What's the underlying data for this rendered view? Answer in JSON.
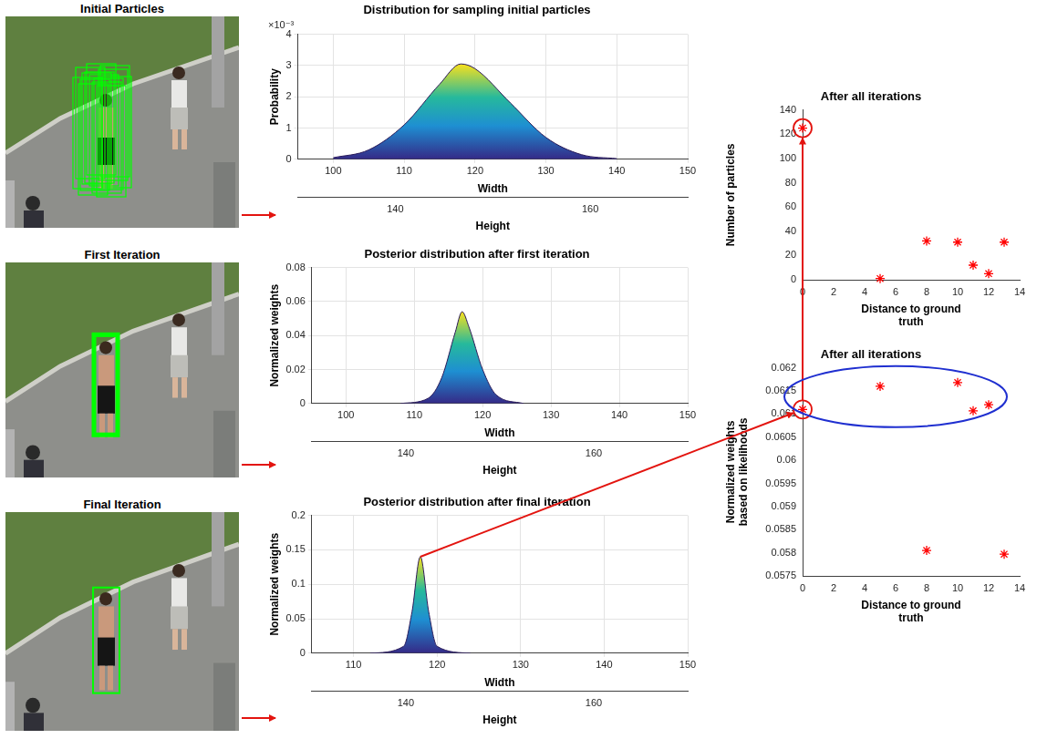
{
  "images": [
    {
      "title": "Initial Particles"
    },
    {
      "title": "First Iteration"
    },
    {
      "title": "Final Iteration"
    }
  ],
  "chart_data": [
    {
      "type": "surface",
      "title": "Distribution for sampling initial particles",
      "xlabel": "Width",
      "ylabel": "Probability",
      "x2label": "Height",
      "annotation": "×10⁻³",
      "x": [
        100,
        105,
        110,
        115,
        118,
        120,
        125,
        130,
        135,
        140
      ],
      "values": [
        0.05,
        0.3,
        1.1,
        2.4,
        3.05,
        2.9,
        1.8,
        0.7,
        0.15,
        0.02
      ],
      "xlim": [
        95,
        150
      ],
      "xticks": [
        100,
        110,
        120,
        130,
        140,
        150
      ],
      "ylim": [
        0,
        4
      ],
      "yticks": [
        0,
        1,
        2,
        3,
        4
      ],
      "x2lim": [
        130,
        170
      ],
      "x2ticks": [
        140,
        160
      ],
      "grid": true
    },
    {
      "type": "surface",
      "title": "Posterior distribution after first iteration",
      "xlabel": "Width",
      "ylabel": "Normalized weights",
      "x2label": "Height",
      "x": [
        108,
        112,
        114,
        116,
        117,
        118,
        120,
        122,
        126
      ],
      "values": [
        0,
        0.003,
        0.015,
        0.042,
        0.054,
        0.045,
        0.02,
        0.005,
        0
      ],
      "xlim": [
        95,
        150
      ],
      "xticks": [
        100,
        110,
        120,
        130,
        140,
        150
      ],
      "ylim": [
        0,
        0.08
      ],
      "yticks": [
        0,
        0.02,
        0.04,
        0.06,
        0.08
      ],
      "x2lim": [
        130,
        170
      ],
      "x2ticks": [
        140,
        160
      ],
      "grid": true
    },
    {
      "type": "surface",
      "title": "Posterior distribution after final iteration",
      "xlabel": "Width",
      "ylabel": "Normalized weights",
      "x2label": "Height",
      "x": [
        112,
        116,
        117,
        118,
        119,
        120,
        124
      ],
      "values": [
        0,
        0.01,
        0.06,
        0.14,
        0.06,
        0.01,
        0
      ],
      "xlim": [
        105,
        150
      ],
      "xticks": [
        110,
        120,
        130,
        140,
        150
      ],
      "ylim": [
        0,
        0.2
      ],
      "yticks": [
        0,
        0.05,
        0.1,
        0.15,
        0.2
      ],
      "x2lim": [
        130,
        170
      ],
      "x2ticks": [
        140,
        160
      ],
      "grid": true
    },
    {
      "type": "scatter",
      "title": "After all iterations",
      "xlabel": "Distance to ground truth",
      "ylabel": "Number of particles",
      "x": [
        0,
        5,
        8,
        10,
        11,
        12,
        13
      ],
      "values": [
        125,
        1,
        32,
        31,
        12,
        5,
        31
      ],
      "xlim": [
        0,
        14
      ],
      "xticks": [
        0,
        2,
        4,
        6,
        8,
        10,
        12,
        14
      ],
      "ylim": [
        0,
        140
      ],
      "yticks": [
        0,
        20,
        40,
        60,
        80,
        100,
        120,
        140
      ],
      "color": "#ff0000",
      "marker": "star",
      "grid": false
    },
    {
      "type": "scatter",
      "title": "After all iterations",
      "xlabel": "Distance to ground truth",
      "ylabel": "Normalized weights based on likelihoods",
      "x": [
        0,
        5,
        8,
        10,
        11,
        12,
        13
      ],
      "values": [
        0.0611,
        0.0616,
        0.05805,
        0.06168,
        0.06107,
        0.0612,
        0.05797
      ],
      "xlim": [
        0,
        14
      ],
      "xticks": [
        0,
        2,
        4,
        6,
        8,
        10,
        12,
        14
      ],
      "ylim": [
        0.0575,
        0.062
      ],
      "yticks": [
        0.0575,
        0.058,
        0.0585,
        0.059,
        0.0595,
        0.06,
        0.0605,
        0.061,
        0.0615,
        0.062
      ],
      "color": "#ff0000",
      "marker": "star",
      "grid": false
    }
  ]
}
